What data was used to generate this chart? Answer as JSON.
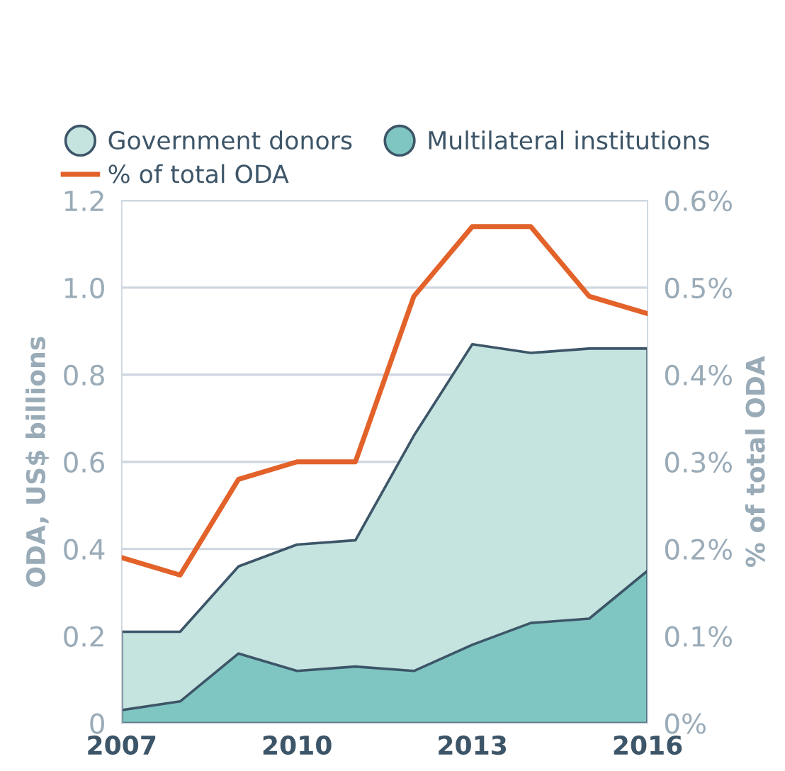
{
  "chart_data": {
    "type": "area",
    "stacked": true,
    "xlabel": null,
    "ylabel": "ODA, US$ billions",
    "y2label": "% of total ODA",
    "x": [
      2007,
      2008,
      2009,
      2010,
      2011,
      2012,
      2013,
      2014,
      2015,
      2016
    ],
    "xlim": [
      2007,
      2016
    ],
    "xticks": [
      2007,
      2010,
      2013,
      2016
    ],
    "ylim": [
      0,
      1.2
    ],
    "yticks": [
      0,
      0.2,
      0.4,
      0.6,
      0.8,
      {
        "value": 1.0,
        "label": "1.0"
      },
      1.2
    ],
    "y2lim": [
      0,
      0.6
    ],
    "y2ticks": [
      {
        "value": 0,
        "label": "0%"
      },
      {
        "value": 0.1,
        "label": "0.1%"
      },
      {
        "value": 0.2,
        "label": "0.2%"
      },
      {
        "value": 0.3,
        "label": "0.3%"
      },
      {
        "value": 0.4,
        "label": "0.4%"
      },
      {
        "value": 0.5,
        "label": "0.5%"
      },
      {
        "value": 0.6,
        "label": "0.6%"
      }
    ],
    "grid": "y",
    "legend": "top left",
    "series": [
      {
        "name": "Multilateral institutions",
        "color": "#7fc6c2",
        "values": [
          0.03,
          0.05,
          0.16,
          0.12,
          0.13,
          0.12,
          0.18,
          0.23,
          0.24,
          0.35
        ]
      },
      {
        "name": "Government donors",
        "color": "#c5e4df",
        "values": [
          0.18,
          0.16,
          0.2,
          0.29,
          0.29,
          0.54,
          0.69,
          0.62,
          0.62,
          0.51
        ]
      },
      {
        "name": "% of total ODA",
        "type": "line",
        "axis": "y2",
        "color": "#e2622a",
        "values": [
          0.19,
          0.17,
          0.28,
          0.3,
          0.3,
          0.49,
          0.57,
          0.57,
          0.49,
          0.47
        ]
      }
    ]
  }
}
